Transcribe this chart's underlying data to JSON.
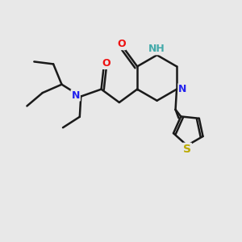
{
  "background_color": "#e8e8e8",
  "bond_color": "#1a1a1a",
  "bond_width": 1.8,
  "atom_colors": {
    "N": "#2222ee",
    "O": "#ee1111",
    "S": "#bbaa00",
    "NH": "#44aaaa",
    "C": "#1a1a1a"
  },
  "font_size": 9,
  "fig_size": [
    3.0,
    3.0
  ]
}
